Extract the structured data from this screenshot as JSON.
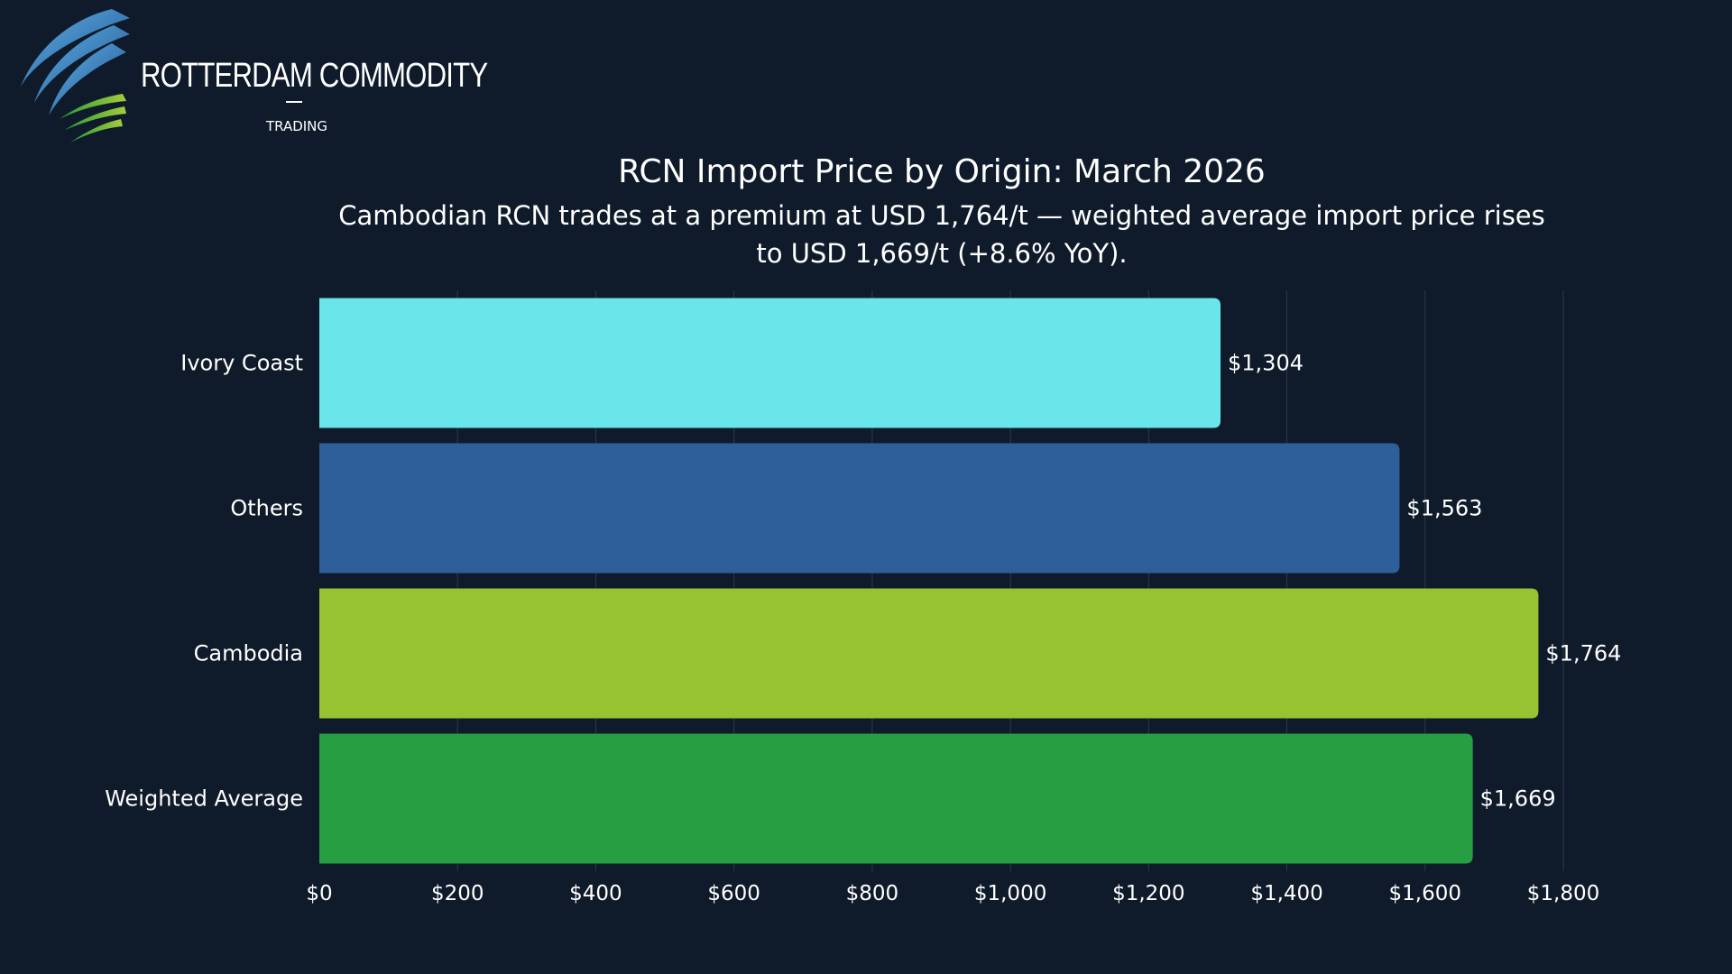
{
  "logo": {
    "name": "ROTTERDAM COMMODITY",
    "sub": "TRADING"
  },
  "colors": {
    "background": "#0f1b2b",
    "gridline": "#2b3a4d"
  },
  "chart_data": {
    "type": "bar",
    "orientation": "horizontal",
    "title": "RCN Import Price by Origin: March 2026",
    "subtitle": "Cambodian RCN trades at a premium at USD 1,764/t — weighted average import price rises to USD 1,669/t (+8.6% YoY).",
    "categories": [
      "Ivory Coast",
      "Others",
      "Cambodia",
      "Weighted Average"
    ],
    "values": [
      1304,
      1563,
      1764,
      1669
    ],
    "value_labels": [
      "$1,304",
      "$1,563",
      "$1,764",
      "$1,669"
    ],
    "bar_colors": [
      "#6ae5e9",
      "#2e5f9b",
      "#97c232",
      "#289e42"
    ],
    "xlim": [
      0,
      1800
    ],
    "xticks": [
      0,
      200,
      400,
      600,
      800,
      1000,
      1200,
      1400,
      1600,
      1800
    ],
    "xtick_labels": [
      "$0",
      "$200",
      "$400",
      "$600",
      "$800",
      "$1,000",
      "$1,200",
      "$1,400",
      "$1,600",
      "$1,800"
    ],
    "xlabel": "",
    "ylabel": "",
    "grid": true,
    "legend": "none"
  }
}
